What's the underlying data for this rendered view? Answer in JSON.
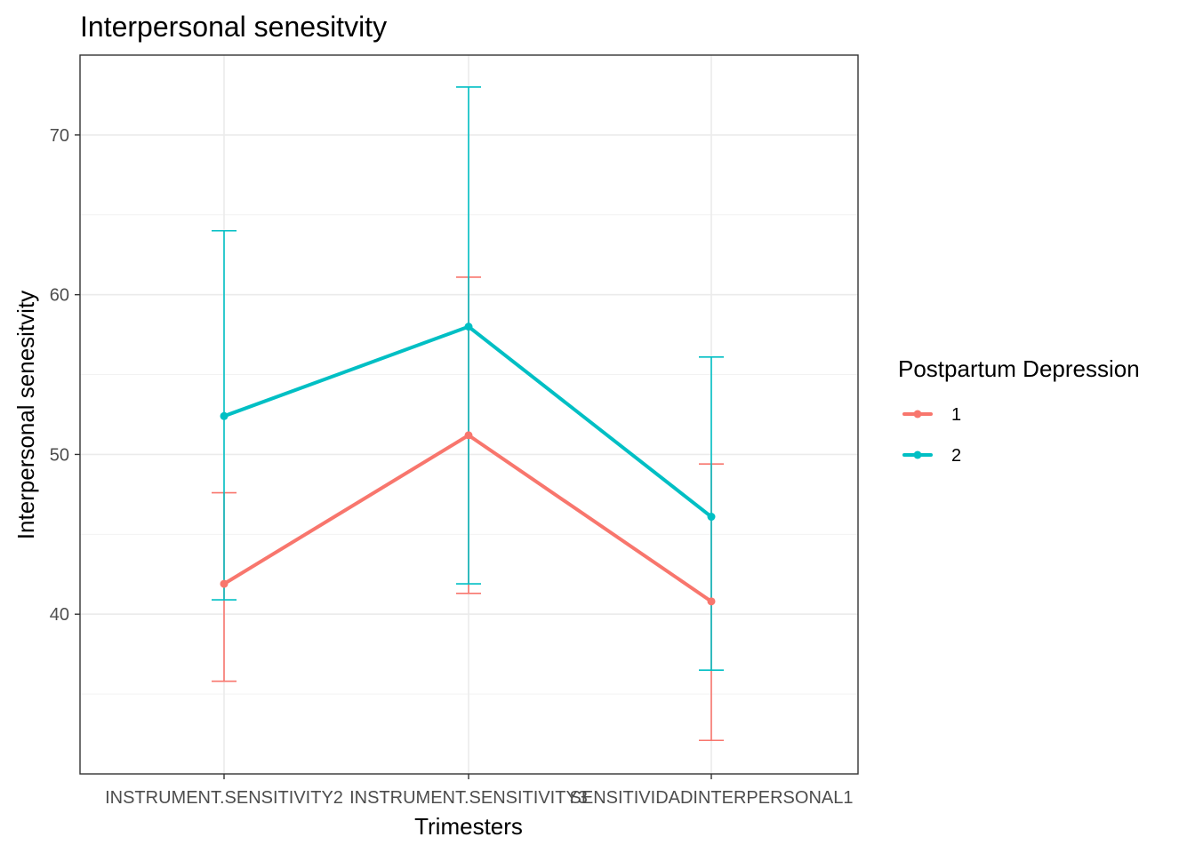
{
  "chart_data": {
    "type": "line",
    "title": "Interpersonal senesitvity",
    "xlabel": "Trimesters",
    "ylabel": "Interpersonal senesitvity",
    "categories": [
      "INSTRUMENT.SENSITIVITY2",
      "INSTRUMENT.SENSITIVITY3",
      "SENSITIVIDADINTERPERSONAL1"
    ],
    "ylim": [
      30,
      75
    ],
    "yticks": [
      40,
      50,
      60,
      70
    ],
    "grid": true,
    "legend": {
      "title": "Postpartum Depression",
      "position": "right"
    },
    "series": [
      {
        "name": "1",
        "color": "#F8766D",
        "values": [
          41.9,
          51.2,
          40.8
        ],
        "error_low": [
          35.8,
          41.3,
          32.1
        ],
        "error_high": [
          47.6,
          61.1,
          49.4
        ]
      },
      {
        "name": "2",
        "color": "#00BFC4",
        "values": [
          52.4,
          58.0,
          46.1
        ],
        "error_low": [
          40.9,
          41.9,
          36.5
        ],
        "error_high": [
          64.0,
          73.0,
          56.1
        ]
      }
    ]
  }
}
